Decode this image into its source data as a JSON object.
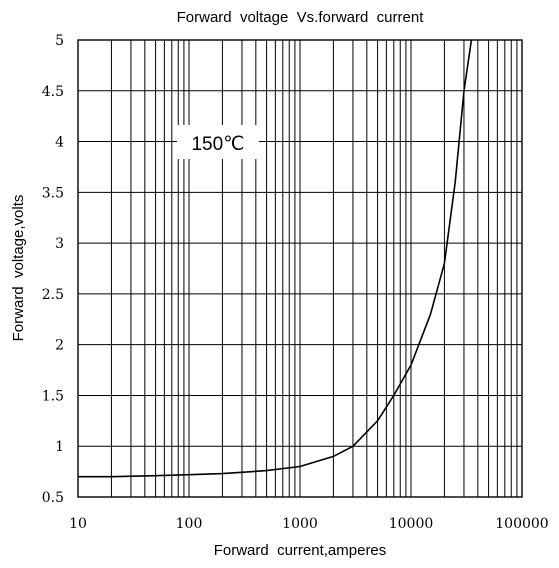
{
  "chart_data": {
    "type": "line",
    "title": "Forward  voltage  Vs.forward  current",
    "xlabel": "Forward  current,amperes",
    "ylabel": "Forward  voltage,volts",
    "x_scale": "log",
    "xlim": [
      10,
      100000
    ],
    "ylim": [
      0.5,
      5
    ],
    "x_ticks": [
      "10",
      "100",
      "1000",
      "10000",
      "100000"
    ],
    "y_ticks": [
      "0.5",
      "1",
      "1.5",
      "2",
      "2.5",
      "3",
      "3.5",
      "4",
      "4.5",
      "5"
    ],
    "grid": true,
    "annotation": "150℃",
    "series": [
      {
        "x": [
          10,
          20,
          50,
          100,
          200,
          500,
          1000,
          2000,
          3000,
          5000,
          7000,
          10000,
          15000,
          20000,
          25000,
          30000,
          35000
        ],
        "y": [
          0.7,
          0.7,
          0.71,
          0.72,
          0.73,
          0.76,
          0.8,
          0.9,
          1.0,
          1.25,
          1.5,
          1.8,
          2.3,
          2.8,
          3.6,
          4.5,
          5.0
        ]
      }
    ]
  }
}
